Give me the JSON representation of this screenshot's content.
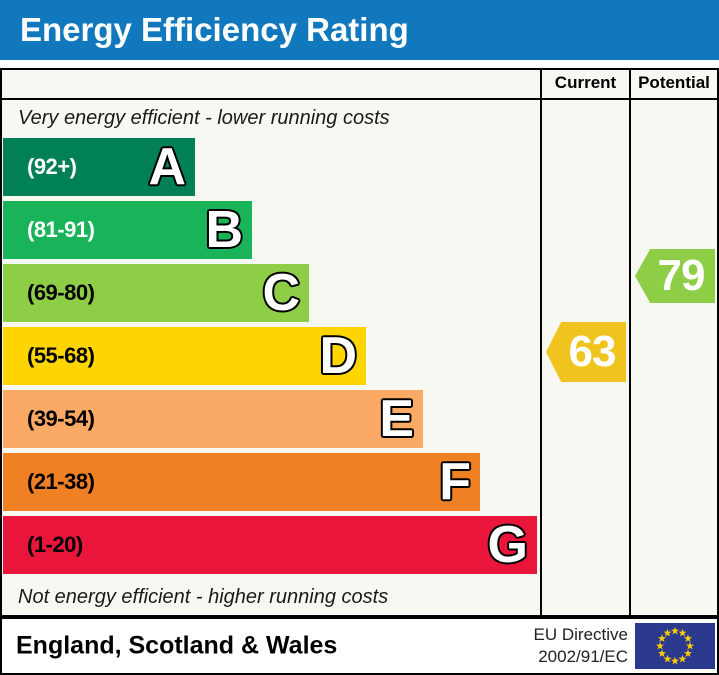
{
  "title": "Energy Efficiency Rating",
  "table": {
    "current_header": "Current",
    "potential_header": "Potential"
  },
  "notes": {
    "top": "Very energy efficient - lower running costs",
    "bottom": "Not energy efficient - higher running costs"
  },
  "bands": [
    {
      "letter": "A",
      "range": "(92+)",
      "color": "#008054",
      "label_color": "#ffffff"
    },
    {
      "letter": "B",
      "range": "(81-91)",
      "color": "#19b459",
      "label_color": "#ffffff"
    },
    {
      "letter": "C",
      "range": "(69-80)",
      "color": "#8dce46",
      "label_color": "#000000"
    },
    {
      "letter": "D",
      "range": "(55-68)",
      "color": "#ffd500",
      "label_color": "#000000"
    },
    {
      "letter": "E",
      "range": "(39-54)",
      "color": "#fbaa65",
      "label_color": "#000000"
    },
    {
      "letter": "F",
      "range": "(21-38)",
      "color": "#ef8023",
      "label_color": "#000000"
    },
    {
      "letter": "G",
      "range": "(1-20)",
      "color": "#e9153b",
      "label_color": "#000000"
    }
  ],
  "current": {
    "value": "63",
    "color": "#f0c41e"
  },
  "potential": {
    "value": "79",
    "color": "#8dce46"
  },
  "footer": {
    "region": "England, Scotland & Wales",
    "directive_line1": "EU Directive",
    "directive_line2": "2002/91/EC"
  },
  "icons": {
    "footer_flag": "eu-flag-icon"
  },
  "colors": {
    "title_bg": "#1278be",
    "title_text": "#ffffff",
    "chart_bg": "#f8f8f2",
    "border": "#000000",
    "flag_blue": "#2b3a8f",
    "flag_star": "#ffcc00"
  },
  "chart_data": {
    "type": "bar",
    "title": "Energy Efficiency Rating",
    "categories": [
      "A",
      "B",
      "C",
      "D",
      "E",
      "F",
      "G"
    ],
    "range_labels": [
      "(92+)",
      "(81-91)",
      "(69-80)",
      "(55-68)",
      "(39-54)",
      "(21-38)",
      "(1-20)"
    ],
    "ranges": [
      [
        92,
        100
      ],
      [
        81,
        91
      ],
      [
        69,
        80
      ],
      [
        55,
        68
      ],
      [
        39,
        54
      ],
      [
        21,
        38
      ],
      [
        1,
        20
      ]
    ],
    "band_colors": [
      "#008054",
      "#19b459",
      "#8dce46",
      "#ffd500",
      "#fbaa65",
      "#ef8023",
      "#e9153b"
    ],
    "scale": [
      1,
      100
    ],
    "current_rating": 63,
    "current_band": "D",
    "potential_rating": 79,
    "potential_band": "C",
    "columns": [
      "Current",
      "Potential"
    ],
    "annotations": [
      "Very energy efficient - lower running costs",
      "Not energy efficient - higher running costs"
    ],
    "region": "England, Scotland & Wales",
    "directive": "EU Directive 2002/91/EC",
    "legend_position": "none",
    "grid": false
  }
}
